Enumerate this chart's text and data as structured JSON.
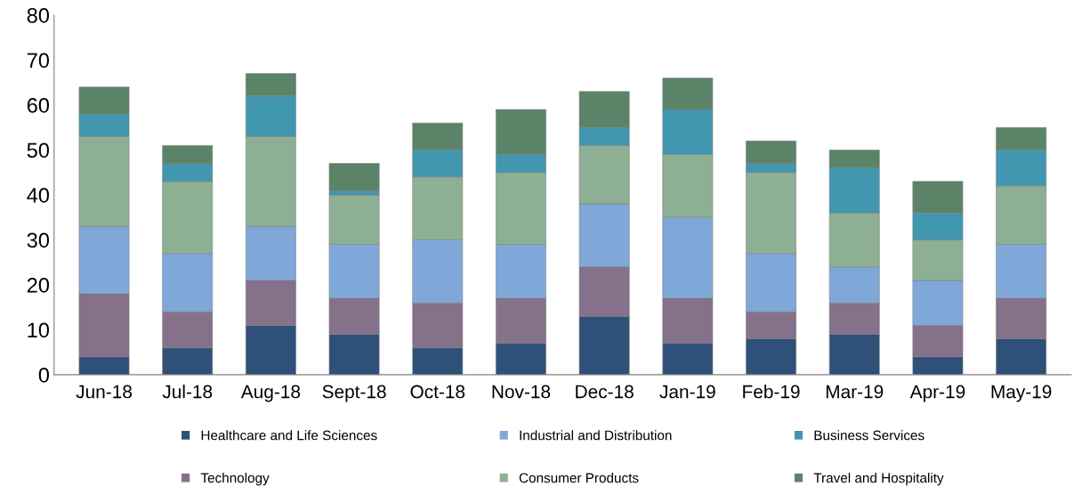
{
  "chart_data": {
    "type": "bar",
    "stacked": true,
    "categories": [
      "Jun-18",
      "Jul-18",
      "Aug-18",
      "Sept-18",
      "Oct-18",
      "Nov-18",
      "Dec-18",
      "Jan-19",
      "Feb-19",
      "Mar-19",
      "Apr-19",
      "May-19"
    ],
    "series": [
      {
        "name": "Healthcare and Life Sciences",
        "color": "#2e5079",
        "values": [
          4,
          6,
          11,
          9,
          6,
          7,
          13,
          7,
          8,
          9,
          4,
          8
        ]
      },
      {
        "name": "Technology",
        "color": "#857189",
        "values": [
          14,
          8,
          10,
          8,
          10,
          10,
          11,
          10,
          6,
          7,
          7,
          9
        ]
      },
      {
        "name": "Industrial and Distribution",
        "color": "#7fa8d8",
        "values": [
          15,
          13,
          12,
          12,
          14,
          12,
          14,
          18,
          13,
          8,
          10,
          12
        ]
      },
      {
        "name": "Consumer Products",
        "color": "#8db095",
        "values": [
          20,
          16,
          20,
          11,
          14,
          16,
          13,
          14,
          18,
          12,
          9,
          13
        ]
      },
      {
        "name": "Business Services",
        "color": "#4196b0",
        "values": [
          5,
          4,
          9,
          1,
          6,
          4,
          4,
          10,
          2,
          10,
          6,
          8
        ]
      },
      {
        "name": "Travel and Hospitality",
        "color": "#5a8368",
        "values": [
          6,
          4,
          5,
          6,
          6,
          10,
          8,
          7,
          5,
          4,
          7,
          5
        ]
      }
    ],
    "ylim": [
      0,
      80
    ],
    "yticks": [
      0,
      10,
      20,
      30,
      40,
      50,
      60,
      70,
      80
    ],
    "grid": false,
    "legend": "bottom"
  }
}
